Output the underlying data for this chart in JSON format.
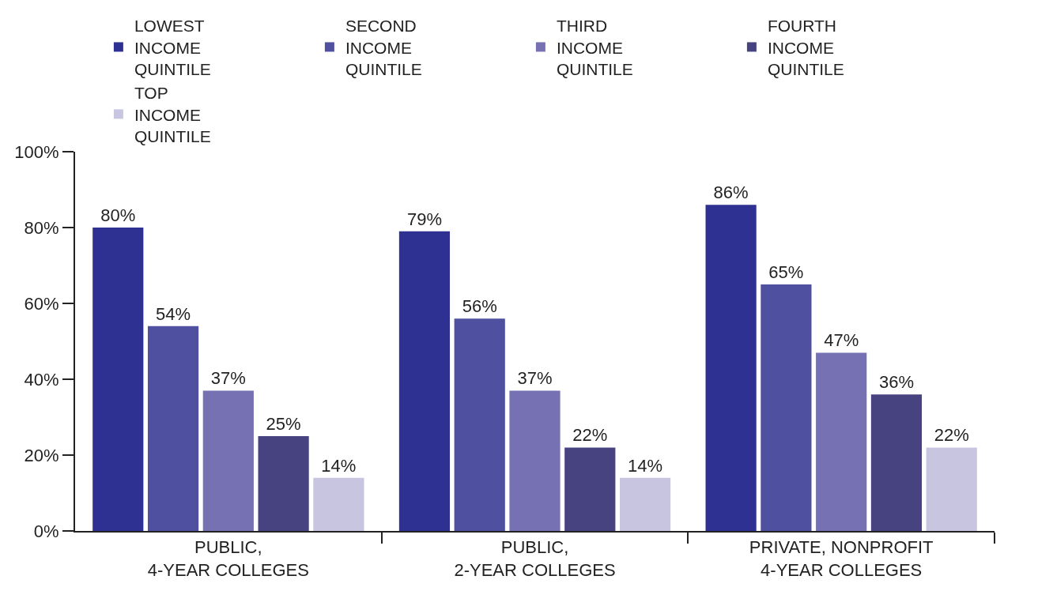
{
  "chart_data": {
    "type": "bar",
    "categories": [
      "PUBLIC,\n4-YEAR COLLEGES",
      "PUBLIC,\n2-YEAR COLLEGES",
      "PRIVATE, NONPROFIT\n4-YEAR COLLEGES"
    ],
    "series": [
      {
        "name": "LOWEST\nINCOME\nQUINTILE",
        "color": "#2e3192",
        "values": [
          80,
          79,
          86
        ],
        "value_labels": [
          "80%",
          "79%",
          "86%"
        ]
      },
      {
        "name": "SECOND\nINCOME\nQUINTILE",
        "color": "#5050a0",
        "values": [
          54,
          56,
          65
        ],
        "value_labels": [
          "54%",
          "56%",
          "65%"
        ]
      },
      {
        "name": "THIRD\nINCOME\nQUINTILE",
        "color": "#7571b3",
        "values": [
          37,
          37,
          47
        ],
        "value_labels": [
          "37%",
          "37%",
          "47%"
        ]
      },
      {
        "name": "FOURTH\nINCOME\nQUINTILE",
        "color": "#474380",
        "values": [
          25,
          22,
          36
        ],
        "value_labels": [
          "25%",
          "22%",
          "36%"
        ]
      },
      {
        "name": "TOP\nINCOME\nQUINTILE",
        "color": "#c8c5e0",
        "values": [
          14,
          14,
          22
        ],
        "value_labels": [
          "14%",
          "14%",
          "22%"
        ]
      }
    ],
    "ylim": [
      0,
      100
    ],
    "yticks": [
      {
        "value": 0,
        "label": "0%"
      },
      {
        "value": 20,
        "label": "20%"
      },
      {
        "value": 40,
        "label": "40%"
      },
      {
        "value": 60,
        "label": "60%"
      },
      {
        "value": 80,
        "label": "80%"
      },
      {
        "value": 100,
        "label": "100%"
      }
    ],
    "legend": "top"
  }
}
